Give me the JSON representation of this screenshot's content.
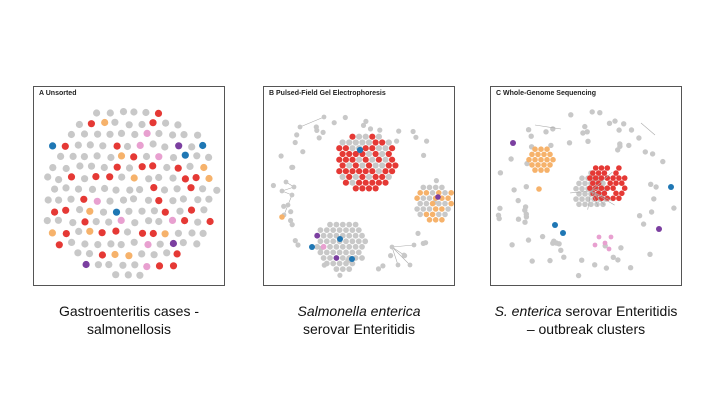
{
  "colors": {
    "gray": "#c8c8c8",
    "red": "#e53935",
    "orange": "#f6b26b",
    "blue": "#1f77b4",
    "purple": "#7b3fa0",
    "pink": "#e8a0d0",
    "edge": "#aaaaaa"
  },
  "panels": [
    {
      "letter": "A",
      "title": "Unsorted"
    },
    {
      "letter": "B",
      "title": "Pulsed-Field Gel Electrophoresis"
    },
    {
      "letter": "C",
      "title": "Whole-Genome Sequencing"
    }
  ],
  "captions": [
    {
      "line1": "Gastroenteritis cases -",
      "line2": "salmonellosis"
    },
    {
      "line1": "Salmonella enterica",
      "line2": "serovar Enteritidis"
    },
    {
      "line1a": "S. enterica",
      "line1b": " serovar Enteritidis",
      "line2": "– outbreak clusters"
    }
  ]
}
